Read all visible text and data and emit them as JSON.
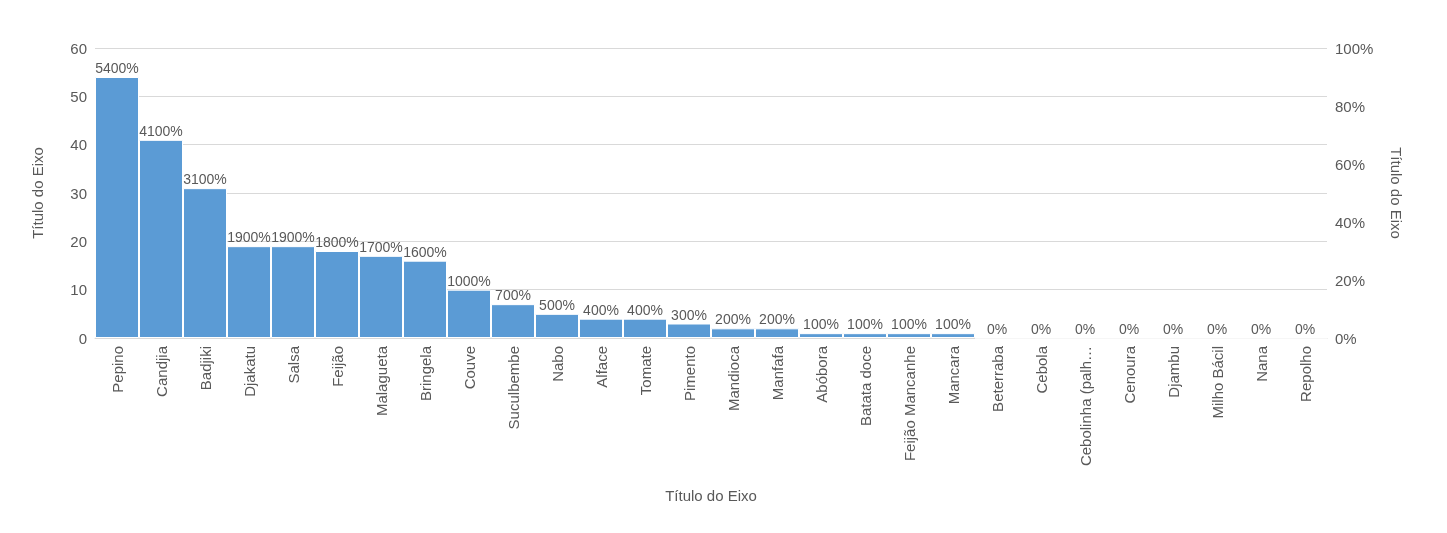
{
  "chart_data": {
    "type": "bar",
    "xlabel": "Título do Eixo",
    "ylabel": "Título do Eixo",
    "y2label": "Título do Eixo",
    "categories": [
      "Pepino",
      "Candjia",
      "Badjiki",
      "Djakatu",
      "Salsa",
      "Feijão",
      "Malagueta",
      "Bringela",
      "Couve",
      "Suculbembe",
      "Nabo",
      "Alface",
      "Tomate",
      "Pimento",
      "Mandioca",
      "Manfafa",
      "Abóbora",
      "Batata doce",
      "Feijão Mancanhe",
      "Mancara",
      "Beterraba",
      "Cebola",
      "Cebolinha (palh…",
      "Cenoura",
      "Djambu",
      "Milho Bácil",
      "Nana",
      "Repolho"
    ],
    "values": [
      54,
      41,
      31,
      19,
      19,
      18,
      17,
      16,
      10,
      7,
      5,
      4,
      4,
      3,
      2,
      2,
      1,
      1,
      1,
      1,
      0,
      0,
      0,
      0,
      0,
      0,
      0,
      0
    ],
    "value_labels": [
      "5400%",
      "4100%",
      "3100%",
      "1900%",
      "1900%",
      "1800%",
      "1700%",
      "1600%",
      "1000%",
      "700%",
      "500%",
      "400%",
      "400%",
      "300%",
      "200%",
      "200%",
      "100%",
      "100%",
      "100%",
      "100%",
      "0%",
      "0%",
      "0%",
      "0%",
      "0%",
      "0%",
      "0%",
      "0%"
    ],
    "color": "#5b9bd5",
    "ylim": [
      0,
      60
    ],
    "yticks": [
      0,
      10,
      20,
      30,
      40,
      50,
      60
    ],
    "y2lim": [
      0,
      100
    ],
    "y2ticks": [
      {
        "value": 0,
        "label": "0%"
      },
      {
        "value": 20,
        "label": "20%"
      },
      {
        "value": 40,
        "label": "40%"
      },
      {
        "value": 60,
        "label": "60%"
      },
      {
        "value": 80,
        "label": "80%"
      },
      {
        "value": 100,
        "label": "100%"
      }
    ],
    "grid": "y"
  }
}
